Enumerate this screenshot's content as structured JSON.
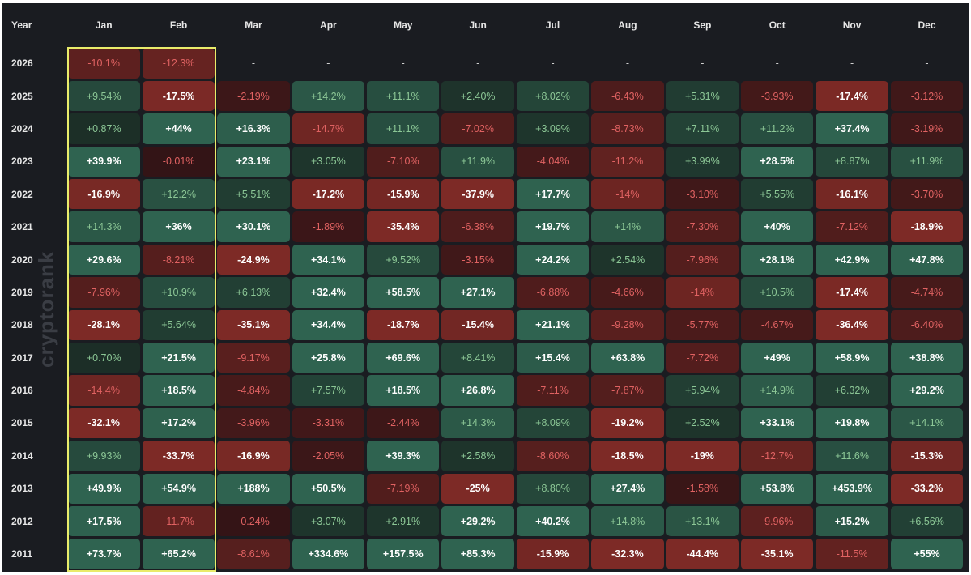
{
  "watermark": "cryptorank",
  "chart_data": {
    "type": "heatmap",
    "title": "",
    "year_header": "Year",
    "months": [
      "Jan",
      "Feb",
      "Mar",
      "Apr",
      "May",
      "Jun",
      "Jul",
      "Aug",
      "Sep",
      "Oct",
      "Nov",
      "Dec"
    ],
    "highlighted_months": [
      "Jan",
      "Feb"
    ],
    "colors": {
      "positive_strong": "#2f6350",
      "positive_weak": "#1b2c25",
      "negative_strong": "#7d2a26",
      "negative_weak": "#331416",
      "text_strong": "#ffffff",
      "text_pos_weak": "#8cc796",
      "text_neg_weak": "#e06262",
      "highlight": "#e9ec6a"
    },
    "rows": [
      {
        "year": "2026",
        "values": [
          "-10.1%",
          "-12.3%",
          "-",
          "-",
          "-",
          "-",
          "-",
          "-",
          "-",
          "-",
          "-",
          "-"
        ]
      },
      {
        "year": "2025",
        "values": [
          "+9.54%",
          "-17.5%",
          "-2.19%",
          "+14.2%",
          "+11.1%",
          "+2.40%",
          "+8.02%",
          "-6.43%",
          "+5.31%",
          "-3.93%",
          "-17.4%",
          "-3.12%"
        ]
      },
      {
        "year": "2024",
        "values": [
          "+0.87%",
          "+44%",
          "+16.3%",
          "-14.7%",
          "+11.1%",
          "-7.02%",
          "+3.09%",
          "-8.73%",
          "+7.11%",
          "+11.2%",
          "+37.4%",
          "-3.19%"
        ]
      },
      {
        "year": "2023",
        "values": [
          "+39.9%",
          "-0.01%",
          "+23.1%",
          "+3.05%",
          "-7.10%",
          "+11.9%",
          "-4.04%",
          "-11.2%",
          "+3.99%",
          "+28.5%",
          "+8.87%",
          "+11.9%"
        ]
      },
      {
        "year": "2022",
        "values": [
          "-16.9%",
          "+12.2%",
          "+5.51%",
          "-17.2%",
          "-15.9%",
          "-37.9%",
          "+17.7%",
          "-14%",
          "-3.10%",
          "+5.55%",
          "-16.1%",
          "-3.70%"
        ]
      },
      {
        "year": "2021",
        "values": [
          "+14.3%",
          "+36%",
          "+30.1%",
          "-1.89%",
          "-35.4%",
          "-6.38%",
          "+19.7%",
          "+14%",
          "-7.30%",
          "+40%",
          "-7.12%",
          "-18.9%"
        ]
      },
      {
        "year": "2020",
        "values": [
          "+29.6%",
          "-8.21%",
          "-24.9%",
          "+34.1%",
          "+9.52%",
          "-3.15%",
          "+24.2%",
          "+2.54%",
          "-7.96%",
          "+28.1%",
          "+42.9%",
          "+47.8%"
        ]
      },
      {
        "year": "2019",
        "values": [
          "-7.96%",
          "+10.9%",
          "+6.13%",
          "+32.4%",
          "+58.5%",
          "+27.1%",
          "-6.88%",
          "-4.66%",
          "-14%",
          "+10.5%",
          "-17.4%",
          "-4.74%"
        ]
      },
      {
        "year": "2018",
        "values": [
          "-28.1%",
          "+5.64%",
          "-35.1%",
          "+34.4%",
          "-18.7%",
          "-15.4%",
          "+21.1%",
          "-9.28%",
          "-5.77%",
          "-4.67%",
          "-36.4%",
          "-6.40%"
        ]
      },
      {
        "year": "2017",
        "values": [
          "+0.70%",
          "+21.5%",
          "-9.17%",
          "+25.8%",
          "+69.6%",
          "+8.41%",
          "+15.4%",
          "+63.8%",
          "-7.72%",
          "+49%",
          "+58.9%",
          "+38.8%"
        ]
      },
      {
        "year": "2016",
        "values": [
          "-14.4%",
          "+18.5%",
          "-4.84%",
          "+7.57%",
          "+18.5%",
          "+26.8%",
          "-7.11%",
          "-7.87%",
          "+5.94%",
          "+14.9%",
          "+6.32%",
          "+29.2%"
        ]
      },
      {
        "year": "2015",
        "values": [
          "-32.1%",
          "+17.2%",
          "-3.96%",
          "-3.31%",
          "-2.44%",
          "+14.3%",
          "+8.09%",
          "-19.2%",
          "+2.52%",
          "+33.1%",
          "+19.8%",
          "+14.1%"
        ]
      },
      {
        "year": "2014",
        "values": [
          "+9.93%",
          "-33.7%",
          "-16.9%",
          "-2.05%",
          "+39.3%",
          "+2.58%",
          "-8.60%",
          "-18.5%",
          "-19%",
          "-12.7%",
          "+11.6%",
          "-15.3%"
        ]
      },
      {
        "year": "2013",
        "values": [
          "+49.9%",
          "+54.9%",
          "+188%",
          "+50.5%",
          "-7.19%",
          "-25%",
          "+8.80%",
          "+27.4%",
          "-1.58%",
          "+53.8%",
          "+453.9%",
          "-33.2%"
        ]
      },
      {
        "year": "2012",
        "values": [
          "+17.5%",
          "-11.7%",
          "-0.24%",
          "+3.07%",
          "+2.91%",
          "+29.2%",
          "+40.2%",
          "+14.8%",
          "+13.1%",
          "-9.96%",
          "+15.2%",
          "+6.56%"
        ]
      },
      {
        "year": "2011",
        "values": [
          "+73.7%",
          "+65.2%",
          "-8.61%",
          "+334.6%",
          "+157.5%",
          "+85.3%",
          "-15.9%",
          "-32.3%",
          "-44.4%",
          "-35.1%",
          "-11.5%",
          "+55%"
        ]
      }
    ]
  }
}
